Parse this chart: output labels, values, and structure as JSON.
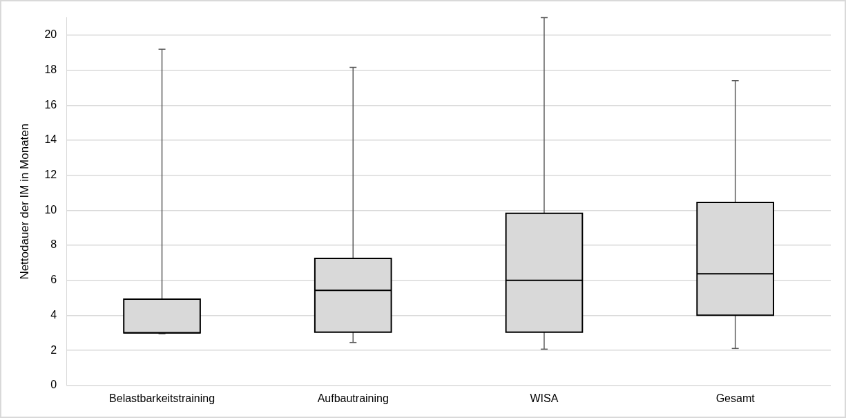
{
  "chart_data": {
    "type": "box",
    "ylabel": "Nettodauer der IM in Monaten",
    "categories": [
      "Belastbarkeitstraining",
      "Aufbautraining",
      "WISA",
      "Gesamt"
    ],
    "color": "#d9d9d9",
    "boxes": [
      {
        "low": 2.95,
        "q1": 3,
        "median": 3,
        "q3": 4.92,
        "high": 19.2
      },
      {
        "low": 2.45,
        "q1": 3.04,
        "median": 5.43,
        "q3": 7.25,
        "high": 18.16
      },
      {
        "low": 2.07,
        "q1": 3.04,
        "median": 6,
        "q3": 9.83,
        "high": 21
      },
      {
        "low": 2.11,
        "q1": 4.01,
        "median": 6.37,
        "q3": 10.45,
        "high": 17.4
      }
    ],
    "ylim": [
      0,
      21
    ],
    "yticks": [
      0,
      2,
      4,
      6,
      8,
      10,
      12,
      14,
      16,
      18,
      20
    ],
    "grid": "y",
    "legend": false
  }
}
